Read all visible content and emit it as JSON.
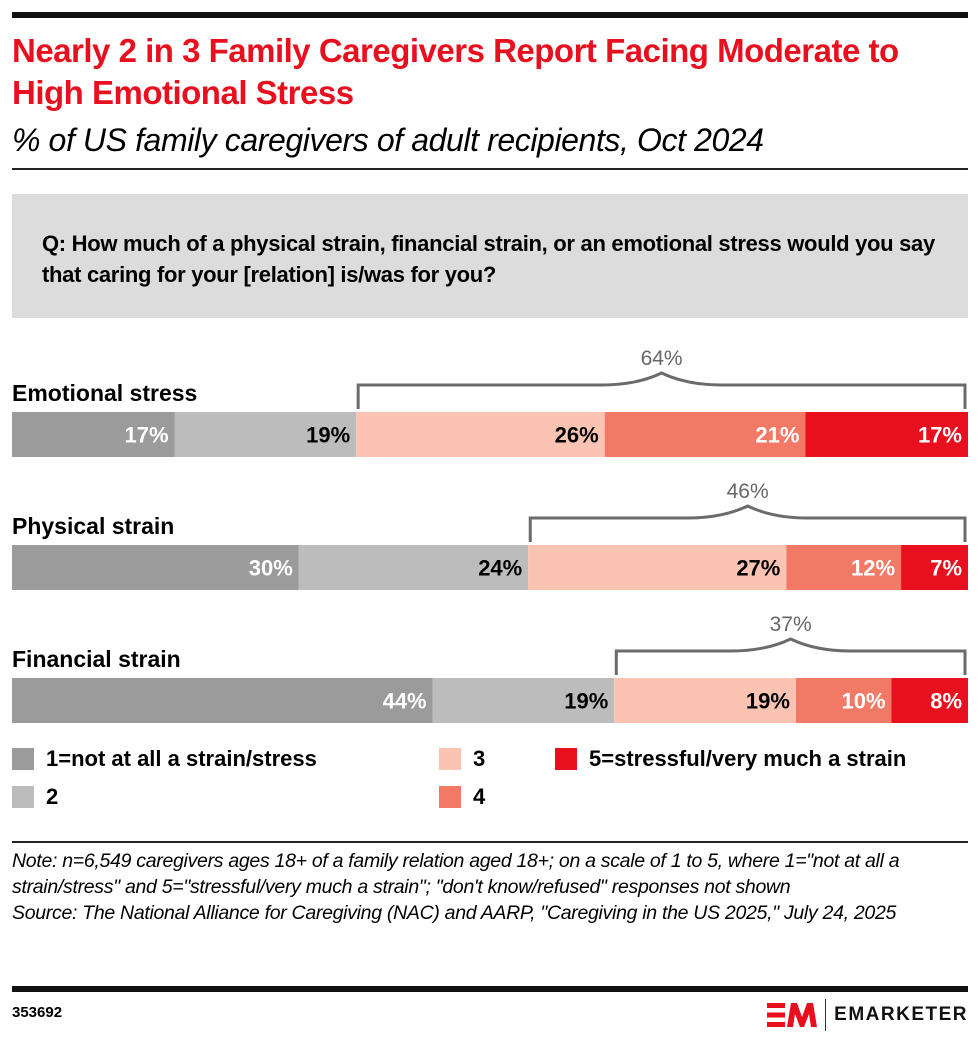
{
  "header": {
    "title": "Nearly 2 in 3 Family Caregivers Report Facing Moderate to High Emotional Stress",
    "subtitle": "% of US family caregivers of adult recipients, Oct 2024"
  },
  "question": "Q: How much of a physical strain, financial strain, or an emotional stress would you say that caring for your [relation] is/was for you?",
  "chart_data": {
    "type": "bar",
    "orientation": "horizontal-stacked-100",
    "title": "Nearly 2 in 3 Family Caregivers Report Facing Moderate to High Emotional Stress",
    "subtitle": "% of US family caregivers of adult recipients, Oct 2024",
    "categories": [
      "Emotional stress",
      "Physical strain",
      "Financial strain"
    ],
    "series": [
      {
        "name": "1=not at all a strain/stress",
        "color": "#9b9b9b",
        "label_color": "#ffffff",
        "values": [
          17,
          30,
          44
        ]
      },
      {
        "name": "2",
        "color": "#bcbcbc",
        "label_color": "#000000",
        "values": [
          19,
          24,
          19
        ]
      },
      {
        "name": "3",
        "color": "#fbc3b1",
        "label_color": "#000000",
        "values": [
          26,
          27,
          19
        ]
      },
      {
        "name": "4",
        "color": "#f27966",
        "label_color": "#ffffff",
        "values": [
          21,
          12,
          10
        ]
      },
      {
        "name": "5=stressful/very much a strain",
        "color": "#e8101e",
        "label_color": "#ffffff",
        "values": [
          17,
          7,
          8
        ]
      }
    ],
    "brackets": [
      {
        "category": "Emotional stress",
        "from_series": "3",
        "to_series": "5=stressful/very much a strain",
        "label": "64%",
        "value": 64
      },
      {
        "category": "Physical strain",
        "from_series": "3",
        "to_series": "5=stressful/very much a strain",
        "label": "46%",
        "value": 46
      },
      {
        "category": "Financial strain",
        "from_series": "3",
        "to_series": "5=stressful/very much a strain",
        "label": "37%",
        "value": 37
      }
    ],
    "xlim": [
      0,
      100
    ],
    "value_suffix": "%",
    "legend_position": "bottom",
    "grid": false
  },
  "legend": [
    {
      "label": "1=not at all a strain/stress",
      "color": "#9b9b9b"
    },
    {
      "label": "2",
      "color": "#bcbcbc"
    },
    {
      "label": "3",
      "color": "#fbc3b1"
    },
    {
      "label": "4",
      "color": "#f27966"
    },
    {
      "label": "5=stressful/very much a strain",
      "color": "#e8101e"
    }
  ],
  "footer": {
    "note": "Note: n=6,549 caregivers ages 18+ of a family relation aged 18+; on a scale of 1 to 5, where 1=\"not at all a strain/stress\" and 5=\"stressful/very much a strain\"; \"don't know/refused\" responses not shown",
    "source": "Source: The National Alliance for Caregiving (NAC) and AARP, \"Caregiving in the US 2025,\" July 24, 2025",
    "chart_id": "353692",
    "brand": "EMARKETER",
    "brand_color": "#e8101e"
  }
}
